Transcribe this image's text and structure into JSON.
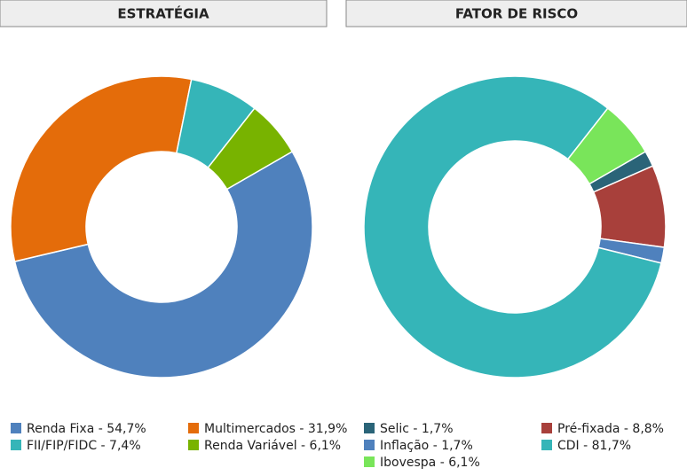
{
  "chart_data": [
    {
      "type": "pie",
      "title": "ESTRATÉGIA",
      "categories": [
        "Renda Fixa - 54,7%",
        "Multimercados - 31,9%",
        "FII/FIP/FIDC - 7,4%",
        "Renda Variável - 6,1%"
      ],
      "values": [
        54.7,
        31.9,
        7.4,
        6.1
      ],
      "colors": [
        "#4f81bd",
        "#e46c0a",
        "#35b5b8",
        "#78b300"
      ]
    },
    {
      "type": "pie",
      "title": "FATOR DE RISCO",
      "categories": [
        "Selic - 1,7%",
        "Pré-fixada - 8,8%",
        "Inflação - 1,7%",
        "CDI - 81,7%",
        "Ibovespa - 6,1%"
      ],
      "values": [
        1.7,
        8.8,
        1.7,
        81.7,
        6.1
      ],
      "colors": [
        "#2a6478",
        "#a8403b",
        "#4f81bd",
        "#35b5b8",
        "#79e55a"
      ]
    }
  ]
}
